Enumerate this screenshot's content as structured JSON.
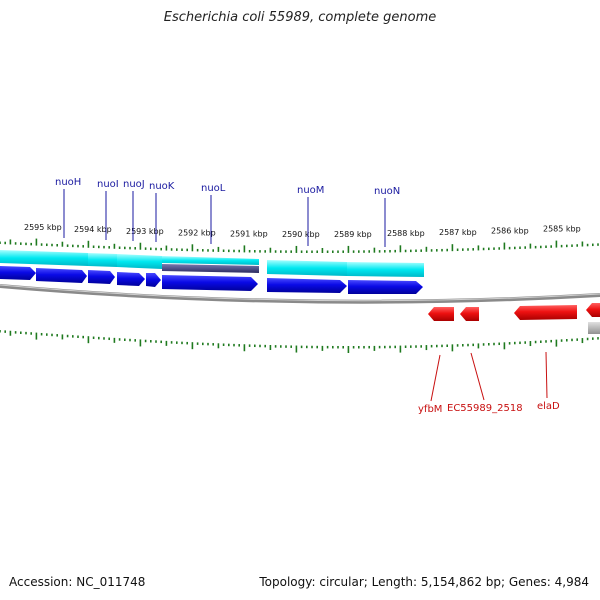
{
  "title": "Escherichia coli 55989, complete genome",
  "footer": {
    "accession": "Accession: NC_011748",
    "summary": "Topology: circular; Length: 5,154,862 bp; Genes: 4,984"
  },
  "colors": {
    "forward_gene": "#0a0ae6",
    "reverse_gene": "#ee1111",
    "cds_band": "#00e5ee",
    "forward_label": "#1a1aa0",
    "reverse_label": "#c81010",
    "backbone": "#888888",
    "tick": "#1f7a1f"
  },
  "kbp_labels": [
    {
      "text": "2595 kbp"
    },
    {
      "text": "2594 kbp"
    },
    {
      "text": "2593 kbp"
    },
    {
      "text": "2592 kbp"
    },
    {
      "text": "2591 kbp"
    },
    {
      "text": "2590 kbp"
    },
    {
      "text": "2589 kbp"
    },
    {
      "text": "2588 kbp"
    },
    {
      "text": "2587 kbp"
    },
    {
      "text": "2586 kbp"
    },
    {
      "text": "2585 kbp"
    }
  ],
  "forward_genes": [
    {
      "name": "nuoH"
    },
    {
      "name": "nuoI"
    },
    {
      "name": "nuoJ"
    },
    {
      "name": "nuoK"
    },
    {
      "name": "nuoL"
    },
    {
      "name": "nuoM"
    },
    {
      "name": "nuoN"
    }
  ],
  "reverse_genes": [
    {
      "name": "yfbM"
    },
    {
      "name": "EC55989_2518"
    },
    {
      "name": "elaD"
    }
  ]
}
